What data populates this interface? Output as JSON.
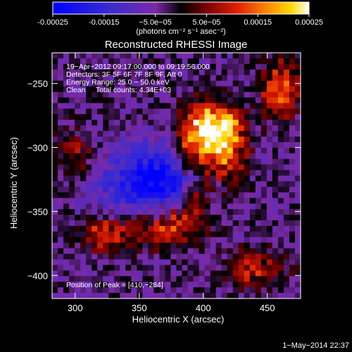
{
  "chart_data": {
    "type": "heatmap",
    "title": "Reconstructed RHESSI Image",
    "xlabel": "Heliocentric X (arcsec)",
    "ylabel": "Heliocentric Y (arcsec)",
    "xlim": [
      282,
      476
    ],
    "ylim": [
      -418,
      -226
    ],
    "xticks": [
      300,
      350,
      400,
      450
    ],
    "yticks": [
      -250,
      -300,
      -350,
      -400
    ],
    "colorbar": {
      "vmin": -0.00025,
      "vmax": 0.00025,
      "ticks": [
        "-0.00025",
        "-0.00015",
        "−5.0e−05",
        "5.0e−05",
        "0.00015",
        "0.00025"
      ],
      "tick_values": [
        -0.00025,
        -0.00015,
        -5e-05,
        5e-05,
        0.00015,
        0.00025
      ],
      "label": "(photons cm⁻² s⁻¹ asec⁻²)"
    },
    "annotations": [
      "19−Apr−2012 09:17:00.000 to 09:19:56.000",
      "Detectors: 3F 5F 6F 7F 8F 9F, Att 0",
      "Energy Range: 25.0 − 50.0 keV",
      "Clean     Total counts: 4.34E+03"
    ],
    "peak_label": "Position of Peak = [410,−284]",
    "peak": [
      410,
      -284
    ],
    "sources": [
      {
        "x": 410,
        "y": -284,
        "sx": 14,
        "sy": 12,
        "amp": 1.0
      },
      {
        "x": 395,
        "y": -300,
        "sx": 12,
        "sy": 20,
        "amp": 0.75
      },
      {
        "x": 420,
        "y": -310,
        "sx": 10,
        "sy": 18,
        "amp": 0.65
      },
      {
        "x": 372,
        "y": -360,
        "sx": 20,
        "sy": 12,
        "amp": 0.85
      },
      {
        "x": 325,
        "y": -368,
        "sx": 14,
        "sy": 10,
        "amp": 0.6
      },
      {
        "x": 460,
        "y": -255,
        "sx": 10,
        "sy": 16,
        "amp": 0.7
      },
      {
        "x": 440,
        "y": -395,
        "sx": 18,
        "sy": 10,
        "amp": 0.5
      },
      {
        "x": 300,
        "y": -305,
        "sx": 12,
        "sy": 14,
        "amp": 0.35
      },
      {
        "x": 395,
        "y": -340,
        "sx": 10,
        "sy": 10,
        "amp": 0.55
      }
    ],
    "negative_region": {
      "x": 365,
      "y": -330,
      "sx": 30,
      "sy": 22,
      "amp": 0.85
    }
  },
  "footer": {
    "timestamp": "1−May−2014 22:37"
  }
}
